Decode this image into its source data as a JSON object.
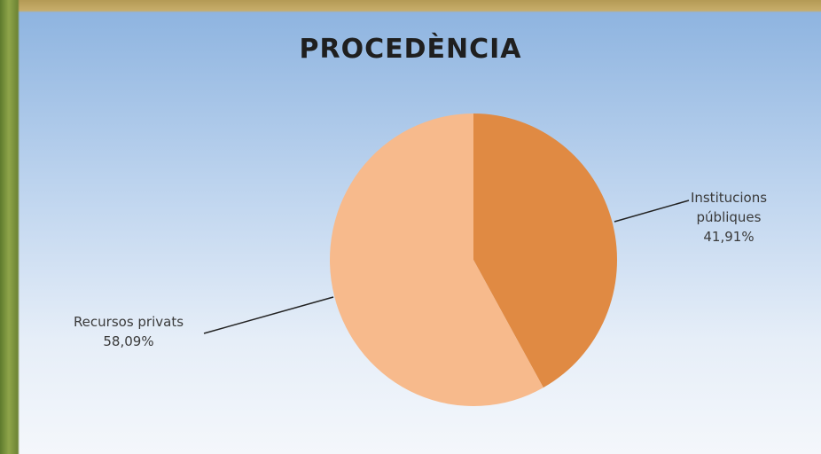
{
  "chart_data": {
    "type": "pie",
    "title": "PROCEDÈNCIA",
    "categories": [
      "Institucions públiques",
      "Recursos privats"
    ],
    "values": [
      41.91,
      58.09
    ],
    "value_labels": [
      "41,91%",
      "58,09%"
    ],
    "colors": [
      "#e08a43",
      "#f7ba8c"
    ]
  }
}
